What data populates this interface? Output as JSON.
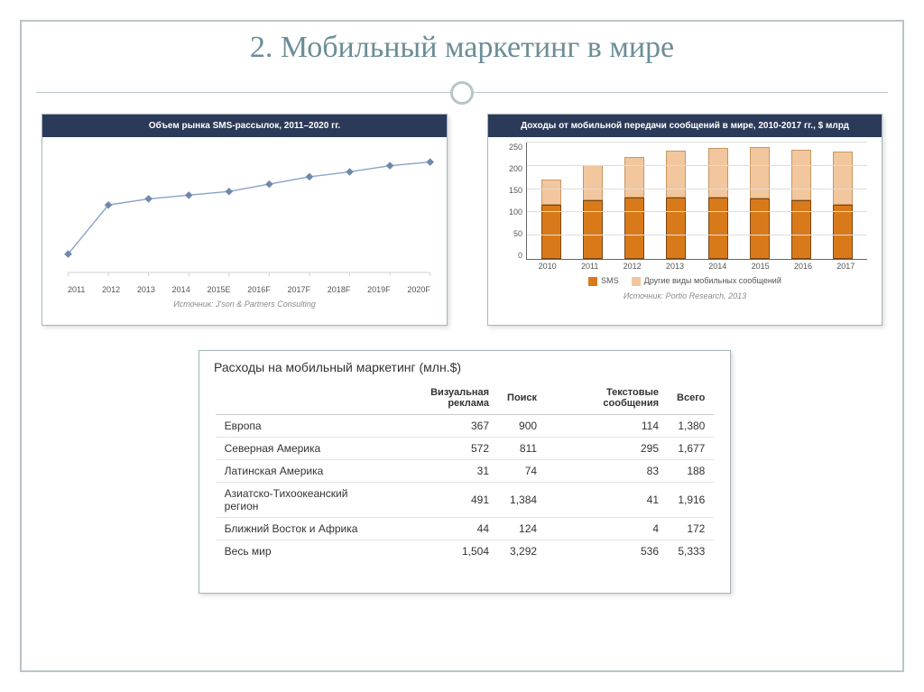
{
  "slide": {
    "title": "2. Мобильный маркетинг в мире",
    "title_color": "#6b8e96",
    "frame_color": "#b8c5c9"
  },
  "line_chart": {
    "type": "line",
    "title": "Объем рынка SMS-рассылок, 2011–2020 гг.",
    "header_bg": "#2c3a5a",
    "header_fg": "#ffffff",
    "x_labels": [
      "2011",
      "2012",
      "2013",
      "2014",
      "2015E",
      "2016F",
      "2017F",
      "2018F",
      "2019F",
      "2020F"
    ],
    "values": [
      15,
      55,
      60,
      63,
      66,
      72,
      78,
      82,
      87,
      90
    ],
    "ylim": [
      0,
      100
    ],
    "line_color": "#8aa3c8",
    "marker_color": "#6f88ad",
    "axis_color": "#d0d0d0",
    "source": "Источник: J'son & Partners Consulting"
  },
  "bar_chart": {
    "type": "stacked-bar",
    "title": "Доходы от мобильной передачи сообщений в мире, 2010-2017 гг., $ млрд",
    "header_bg": "#2c3a5a",
    "header_fg": "#ffffff",
    "x_labels": [
      "2010",
      "2011",
      "2012",
      "2013",
      "2014",
      "2015",
      "2016",
      "2017"
    ],
    "series_a_label": "SMS",
    "series_b_label": "Другие виды мобильных сообщений",
    "series_a_color": "#d97a1a",
    "series_b_color": "#f2c79e",
    "series_a": [
      115,
      125,
      130,
      130,
      130,
      128,
      125,
      115
    ],
    "series_b": [
      55,
      75,
      88,
      100,
      106,
      110,
      108,
      113
    ],
    "ylim": [
      0,
      250
    ],
    "ytick_step": 50,
    "y_ticks": [
      "0",
      "50",
      "100",
      "150",
      "200",
      "250"
    ],
    "grid_color": "#dddddd",
    "source": "Источник: Portio Research, 2013"
  },
  "table": {
    "title": "Расходы на мобильный маркетинг (млн.$)",
    "columns": [
      "",
      "Визуальная реклама",
      "Поиск",
      "Текстовые сообщения",
      "Всего"
    ],
    "rows": [
      [
        "Европа",
        "367",
        "900",
        "114",
        "1,380"
      ],
      [
        "Северная Америка",
        "572",
        "811",
        "295",
        "1,677"
      ],
      [
        "Латинская Америка",
        "31",
        "74",
        "83",
        "188"
      ],
      [
        "Азиатско-Тихоокеанский регион",
        "491",
        "1,384",
        "41",
        "1,916"
      ],
      [
        "Ближний Восток и Африка",
        "44",
        "124",
        "4",
        "172"
      ],
      [
        "Весь мир",
        "1,504",
        "3,292",
        "536",
        "5,333"
      ]
    ],
    "row_border": "#e4e4e4",
    "header_border": "#cccccc"
  }
}
